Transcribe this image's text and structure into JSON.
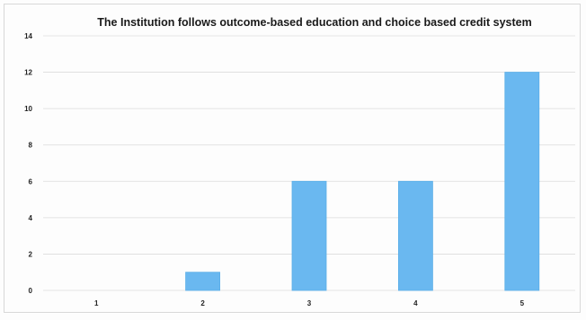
{
  "chart_data": {
    "type": "bar",
    "title": "The Institution follows outcome-based education and choice based credit system",
    "categories": [
      "1",
      "2",
      "3",
      "4",
      "5"
    ],
    "values": [
      0,
      1,
      6,
      6,
      12
    ],
    "ylim": [
      0,
      14
    ],
    "yticks": [
      "0",
      "2",
      "4",
      "6",
      "8",
      "10",
      "12",
      "14"
    ],
    "xlabel": "",
    "ylabel": "",
    "grid": true,
    "legend": "none",
    "bar_color": "#6ab8f0"
  }
}
